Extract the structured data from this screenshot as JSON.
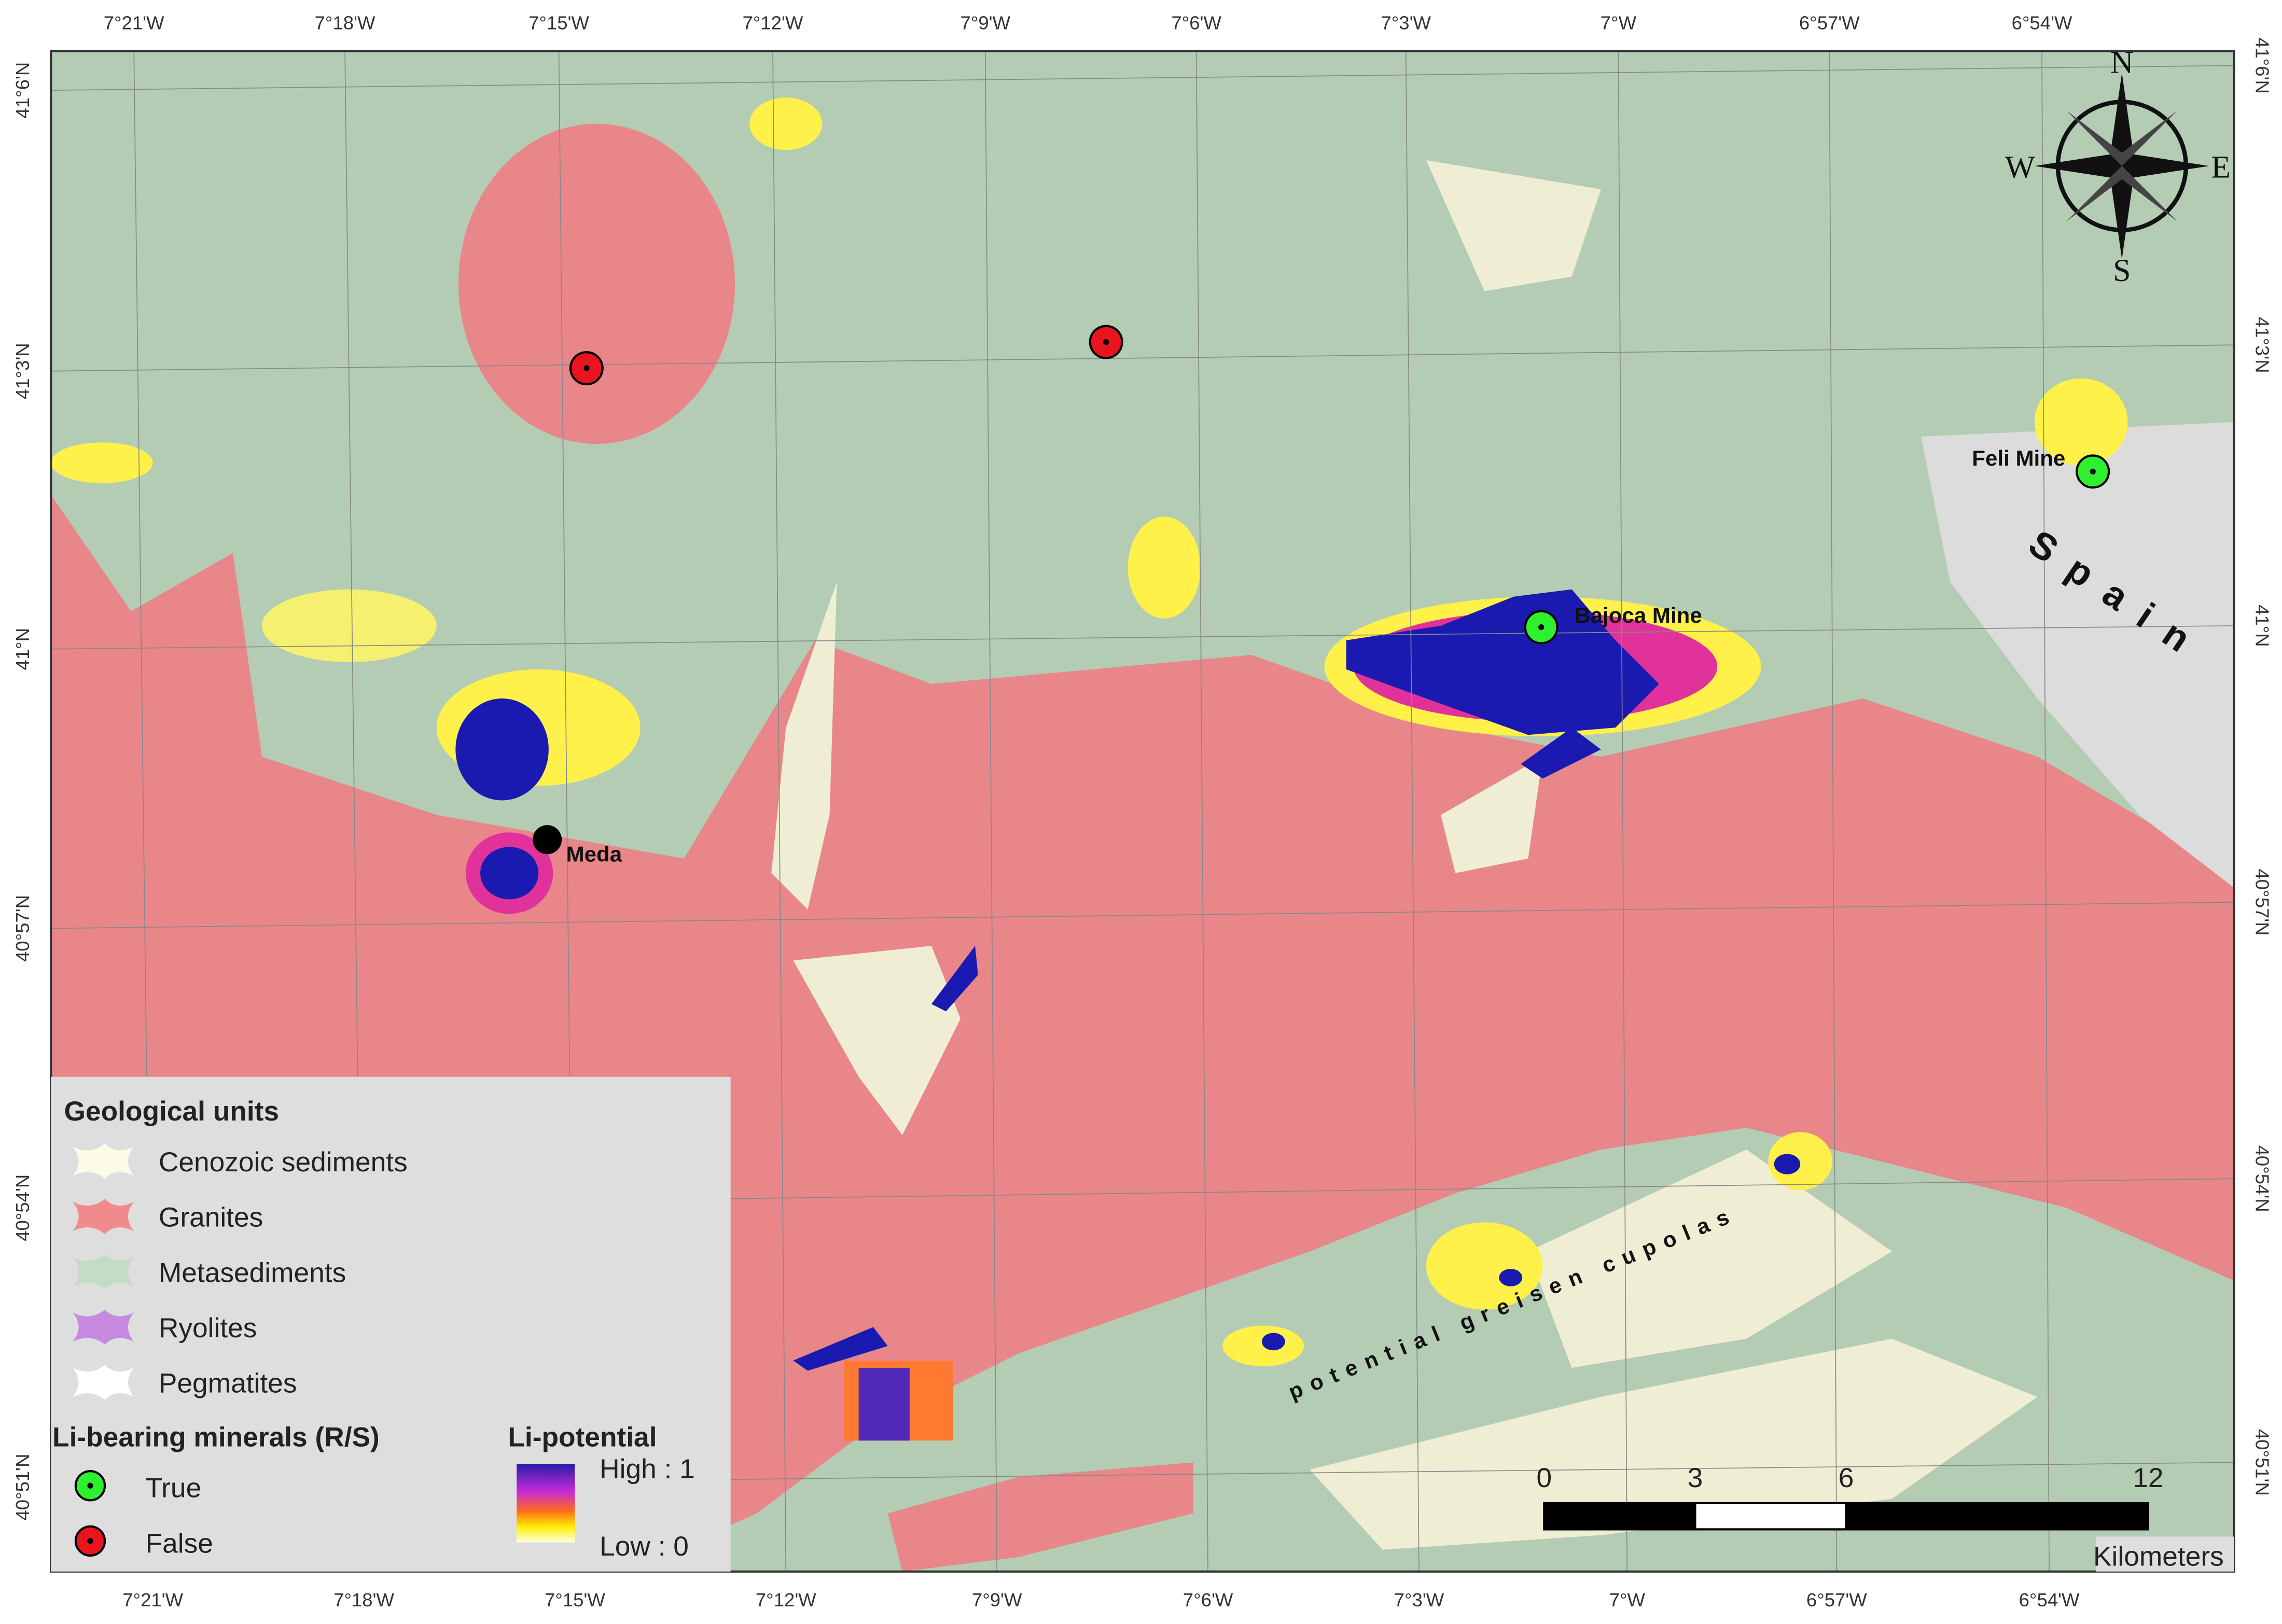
{
  "map": {
    "graticule": {
      "top_labels": [
        "7°21'W",
        "7°18'W",
        "7°15'W",
        "7°12'W",
        "7°9'W",
        "7°6'W",
        "7°3'W",
        "7°W",
        "6°57'W",
        "6°54'W"
      ],
      "bottom_labels": [
        "7°21'W",
        "7°18'W",
        "7°15'W",
        "7°12'W",
        "7°9'W",
        "7°6'W",
        "7°3'W",
        "7°W",
        "6°57'W",
        "6°54'W"
      ],
      "left_labels": [
        "41°6'N",
        "41°3'N",
        "41°N",
        "40°57'N",
        "40°54'N",
        "40°51'N"
      ],
      "right_labels": [
        "41°6'N",
        "41°3'N",
        "41°N",
        "40°57'N",
        "40°54'N",
        "40°51'N"
      ]
    },
    "places": [
      {
        "label": "Meda"
      },
      {
        "label": "Bajoca Mine"
      },
      {
        "label": "Feli Mine"
      }
    ],
    "region_label": "Spain",
    "annotation": "potential greisen cupolas",
    "compass": {
      "north": "N",
      "east": "E",
      "south": "S",
      "west": "W"
    }
  },
  "legend": {
    "geology_title": "Geological units",
    "geology_items": [
      "Cenozoic sediments",
      "Granites",
      "Metasediments",
      "Ryolites",
      "Pegmatites"
    ],
    "minerals_title": "Li-bearing minerals (R/S)",
    "minerals_items": [
      "True",
      "False"
    ],
    "potential_title": "Li-potential",
    "potential_high": "High : 1",
    "potential_low": "Low : 0"
  },
  "scale_bar": {
    "ticks": [
      0,
      3,
      6,
      12
    ],
    "unit": "Kilometers"
  }
}
